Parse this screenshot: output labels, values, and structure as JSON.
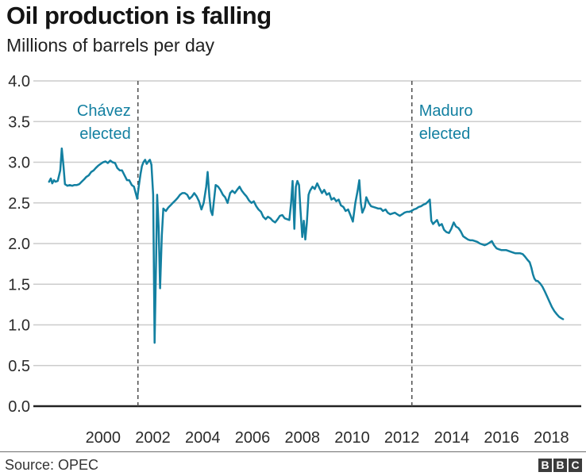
{
  "header": {
    "title": "Oil production is falling",
    "subtitle": "Millions of barrels per day"
  },
  "footer": {
    "source": "Source: OPEC",
    "logo_letters": [
      "B",
      "B",
      "C"
    ]
  },
  "colors": {
    "line": "#1380A1",
    "annotation_text": "#1380A1",
    "grid": "#cccccc",
    "axis": "#222222",
    "tick_text": "#2b2b2b",
    "event_line": "#4d4d4d"
  },
  "chart_data": {
    "type": "line",
    "title": "Oil production is falling",
    "subtitle": "Millions of barrels per day",
    "xlabel": "",
    "ylabel": "Millions of barrels per day",
    "xlim": [
      1997.2,
      2019.2
    ],
    "ylim": [
      0,
      4
    ],
    "grid": true,
    "legend": "none",
    "x_ticks": [
      2000,
      2002,
      2004,
      2006,
      2008,
      2010,
      2012,
      2014,
      2016,
      2018
    ],
    "x_tick_labels": [
      "2000",
      "2002",
      "2004",
      "2006",
      "2008",
      "2010",
      "2012",
      "2014",
      "2016",
      "2018"
    ],
    "y_ticks": [
      0,
      0.5,
      1.0,
      1.5,
      2.0,
      2.5,
      3.0,
      3.5,
      4.0
    ],
    "y_tick_labels": [
      "0.0",
      "0.5",
      "1.0",
      "1.5",
      "2.0",
      "2.5",
      "3.0",
      "3.5",
      "4.0"
    ],
    "annotations": [
      {
        "label_line1": "Chávez",
        "label_line2": "elected",
        "year": 2001.4,
        "label_side": "left"
      },
      {
        "label_line1": "Maduro",
        "label_line2": "elected",
        "year": 2012.4,
        "label_side": "right"
      }
    ],
    "series": [
      {
        "name": "Oil production (millions of barrels per day)",
        "points": [
          [
            1997.83,
            2.76
          ],
          [
            1997.9,
            2.8
          ],
          [
            1997.96,
            2.74
          ],
          [
            1998.03,
            2.78
          ],
          [
            1998.09,
            2.76
          ],
          [
            1998.18,
            2.77
          ],
          [
            1998.28,
            2.9
          ],
          [
            1998.34,
            3.17
          ],
          [
            1998.41,
            2.95
          ],
          [
            1998.47,
            2.73
          ],
          [
            1998.57,
            2.71
          ],
          [
            1998.66,
            2.72
          ],
          [
            1998.76,
            2.71
          ],
          [
            1998.85,
            2.72
          ],
          [
            1998.95,
            2.72
          ],
          [
            1999.04,
            2.73
          ],
          [
            1999.14,
            2.76
          ],
          [
            1999.24,
            2.79
          ],
          [
            1999.33,
            2.82
          ],
          [
            1999.43,
            2.84
          ],
          [
            1999.52,
            2.88
          ],
          [
            1999.62,
            2.9
          ],
          [
            1999.71,
            2.93
          ],
          [
            1999.81,
            2.96
          ],
          [
            1999.9,
            2.98
          ],
          [
            2000.0,
            3.0
          ],
          [
            2000.1,
            3.01
          ],
          [
            2000.19,
            2.99
          ],
          [
            2000.29,
            3.02
          ],
          [
            2000.38,
            3.0
          ],
          [
            2000.48,
            2.99
          ],
          [
            2000.57,
            2.93
          ],
          [
            2000.67,
            2.9
          ],
          [
            2000.76,
            2.9
          ],
          [
            2000.86,
            2.84
          ],
          [
            2000.96,
            2.78
          ],
          [
            2001.05,
            2.78
          ],
          [
            2001.15,
            2.72
          ],
          [
            2001.24,
            2.7
          ],
          [
            2001.31,
            2.62
          ],
          [
            2001.37,
            2.55
          ],
          [
            2001.43,
            2.7
          ],
          [
            2001.5,
            2.85
          ],
          [
            2001.56,
            2.95
          ],
          [
            2001.62,
            3.0
          ],
          [
            2001.69,
            3.03
          ],
          [
            2001.75,
            2.98
          ],
          [
            2001.82,
            3.01
          ],
          [
            2001.88,
            3.03
          ],
          [
            2001.94,
            2.97
          ],
          [
            2002.01,
            2.6
          ],
          [
            2002.07,
            0.78
          ],
          [
            2002.13,
            1.8
          ],
          [
            2002.17,
            2.6
          ],
          [
            2002.23,
            2.2
          ],
          [
            2002.29,
            1.45
          ],
          [
            2002.36,
            2.1
          ],
          [
            2002.42,
            2.43
          ],
          [
            2002.52,
            2.4
          ],
          [
            2002.61,
            2.44
          ],
          [
            2002.71,
            2.47
          ],
          [
            2002.8,
            2.5
          ],
          [
            2002.9,
            2.53
          ],
          [
            2002.99,
            2.56
          ],
          [
            2003.09,
            2.6
          ],
          [
            2003.18,
            2.62
          ],
          [
            2003.28,
            2.62
          ],
          [
            2003.38,
            2.6
          ],
          [
            2003.47,
            2.55
          ],
          [
            2003.57,
            2.58
          ],
          [
            2003.66,
            2.62
          ],
          [
            2003.76,
            2.58
          ],
          [
            2003.85,
            2.52
          ],
          [
            2003.95,
            2.42
          ],
          [
            2004.04,
            2.5
          ],
          [
            2004.14,
            2.7
          ],
          [
            2004.2,
            2.88
          ],
          [
            2004.27,
            2.58
          ],
          [
            2004.33,
            2.4
          ],
          [
            2004.39,
            2.35
          ],
          [
            2004.46,
            2.55
          ],
          [
            2004.52,
            2.72
          ],
          [
            2004.62,
            2.7
          ],
          [
            2004.71,
            2.66
          ],
          [
            2004.81,
            2.6
          ],
          [
            2004.9,
            2.57
          ],
          [
            2005.0,
            2.5
          ],
          [
            2005.1,
            2.62
          ],
          [
            2005.19,
            2.65
          ],
          [
            2005.29,
            2.62
          ],
          [
            2005.38,
            2.66
          ],
          [
            2005.48,
            2.7
          ],
          [
            2005.57,
            2.65
          ],
          [
            2005.67,
            2.61
          ],
          [
            2005.76,
            2.58
          ],
          [
            2005.86,
            2.53
          ],
          [
            2005.96,
            2.5
          ],
          [
            2006.05,
            2.52
          ],
          [
            2006.15,
            2.46
          ],
          [
            2006.24,
            2.42
          ],
          [
            2006.34,
            2.39
          ],
          [
            2006.43,
            2.33
          ],
          [
            2006.53,
            2.3
          ],
          [
            2006.62,
            2.33
          ],
          [
            2006.72,
            2.31
          ],
          [
            2006.81,
            2.28
          ],
          [
            2006.91,
            2.26
          ],
          [
            2007.01,
            2.3
          ],
          [
            2007.1,
            2.34
          ],
          [
            2007.2,
            2.35
          ],
          [
            2007.29,
            2.31
          ],
          [
            2007.39,
            2.3
          ],
          [
            2007.48,
            2.29
          ],
          [
            2007.55,
            2.5
          ],
          [
            2007.61,
            2.77
          ],
          [
            2007.68,
            2.18
          ],
          [
            2007.74,
            2.7
          ],
          [
            2007.8,
            2.77
          ],
          [
            2007.87,
            2.72
          ],
          [
            2007.93,
            2.4
          ],
          [
            2008.0,
            2.08
          ],
          [
            2008.06,
            2.28
          ],
          [
            2008.12,
            2.05
          ],
          [
            2008.18,
            2.25
          ],
          [
            2008.25,
            2.6
          ],
          [
            2008.31,
            2.65
          ],
          [
            2008.41,
            2.7
          ],
          [
            2008.5,
            2.67
          ],
          [
            2008.6,
            2.74
          ],
          [
            2008.69,
            2.68
          ],
          [
            2008.79,
            2.62
          ],
          [
            2008.88,
            2.66
          ],
          [
            2008.98,
            2.6
          ],
          [
            2009.08,
            2.62
          ],
          [
            2009.17,
            2.54
          ],
          [
            2009.27,
            2.56
          ],
          [
            2009.36,
            2.52
          ],
          [
            2009.46,
            2.54
          ],
          [
            2009.55,
            2.47
          ],
          [
            2009.65,
            2.45
          ],
          [
            2009.74,
            2.4
          ],
          [
            2009.84,
            2.42
          ],
          [
            2009.93,
            2.35
          ],
          [
            2010.03,
            2.27
          ],
          [
            2010.13,
            2.5
          ],
          [
            2010.22,
            2.65
          ],
          [
            2010.29,
            2.78
          ],
          [
            2010.35,
            2.5
          ],
          [
            2010.41,
            2.38
          ],
          [
            2010.51,
            2.45
          ],
          [
            2010.57,
            2.57
          ],
          [
            2010.67,
            2.5
          ],
          [
            2010.76,
            2.46
          ],
          [
            2010.86,
            2.45
          ],
          [
            2010.96,
            2.44
          ],
          [
            2011.05,
            2.43
          ],
          [
            2011.15,
            2.43
          ],
          [
            2011.24,
            2.4
          ],
          [
            2011.34,
            2.42
          ],
          [
            2011.43,
            2.38
          ],
          [
            2011.53,
            2.36
          ],
          [
            2011.62,
            2.37
          ],
          [
            2011.72,
            2.38
          ],
          [
            2011.81,
            2.36
          ],
          [
            2011.91,
            2.34
          ],
          [
            2012.01,
            2.36
          ],
          [
            2012.1,
            2.38
          ],
          [
            2012.2,
            2.39
          ],
          [
            2012.29,
            2.39
          ],
          [
            2012.39,
            2.4
          ],
          [
            2012.48,
            2.42
          ],
          [
            2012.58,
            2.43
          ],
          [
            2012.67,
            2.45
          ],
          [
            2012.77,
            2.46
          ],
          [
            2012.87,
            2.48
          ],
          [
            2012.96,
            2.49
          ],
          [
            2013.06,
            2.52
          ],
          [
            2013.12,
            2.54
          ],
          [
            2013.18,
            2.28
          ],
          [
            2013.25,
            2.24
          ],
          [
            2013.31,
            2.26
          ],
          [
            2013.41,
            2.29
          ],
          [
            2013.5,
            2.22
          ],
          [
            2013.6,
            2.24
          ],
          [
            2013.69,
            2.17
          ],
          [
            2013.79,
            2.14
          ],
          [
            2013.89,
            2.13
          ],
          [
            2013.98,
            2.18
          ],
          [
            2014.08,
            2.26
          ],
          [
            2014.17,
            2.21
          ],
          [
            2014.27,
            2.19
          ],
          [
            2014.36,
            2.15
          ],
          [
            2014.46,
            2.09
          ],
          [
            2014.55,
            2.07
          ],
          [
            2014.65,
            2.05
          ],
          [
            2014.75,
            2.04
          ],
          [
            2014.84,
            2.04
          ],
          [
            2014.94,
            2.03
          ],
          [
            2015.03,
            2.02
          ],
          [
            2015.13,
            2.0
          ],
          [
            2015.22,
            1.99
          ],
          [
            2015.32,
            1.98
          ],
          [
            2015.41,
            1.99
          ],
          [
            2015.51,
            2.01
          ],
          [
            2015.61,
            2.03
          ],
          [
            2015.7,
            1.98
          ],
          [
            2015.8,
            1.94
          ],
          [
            2015.89,
            1.93
          ],
          [
            2015.99,
            1.92
          ],
          [
            2016.08,
            1.92
          ],
          [
            2016.18,
            1.92
          ],
          [
            2016.27,
            1.91
          ],
          [
            2016.37,
            1.9
          ],
          [
            2016.46,
            1.89
          ],
          [
            2016.56,
            1.88
          ],
          [
            2016.66,
            1.88
          ],
          [
            2016.75,
            1.88
          ],
          [
            2016.85,
            1.87
          ],
          [
            2016.94,
            1.84
          ],
          [
            2017.04,
            1.8
          ],
          [
            2017.13,
            1.77
          ],
          [
            2017.2,
            1.7
          ],
          [
            2017.26,
            1.62
          ],
          [
            2017.32,
            1.57
          ],
          [
            2017.39,
            1.54
          ],
          [
            2017.45,
            1.54
          ],
          [
            2017.55,
            1.51
          ],
          [
            2017.64,
            1.47
          ],
          [
            2017.74,
            1.41
          ],
          [
            2017.83,
            1.35
          ],
          [
            2017.93,
            1.28
          ],
          [
            2018.02,
            1.22
          ],
          [
            2018.12,
            1.17
          ],
          [
            2018.22,
            1.13
          ],
          [
            2018.31,
            1.1
          ],
          [
            2018.41,
            1.08
          ],
          [
            2018.47,
            1.07
          ]
        ]
      }
    ]
  }
}
